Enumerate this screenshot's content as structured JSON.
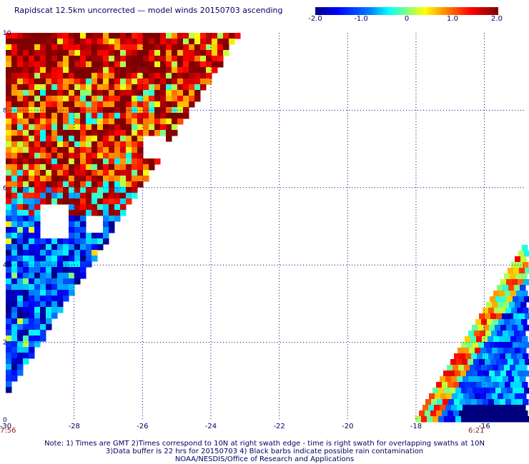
{
  "title": "Rapidscat 12.5km uncorrected — model winds 20150703 ascending",
  "colorbar": {
    "ticks": [
      "-2.0",
      "-1.0",
      "0",
      "1.0",
      "2.0"
    ],
    "tick_values": [
      -2.0,
      -1.0,
      0,
      1.0,
      2.0
    ],
    "range": [
      -2.0,
      2.0
    ]
  },
  "map": {
    "lon_range": [
      -30,
      -14.8
    ],
    "lat_range": [
      0,
      10
    ],
    "x_ticks": [
      "-30",
      "-28",
      "-26",
      "-24",
      "-22",
      "-20",
      "-18",
      "-16"
    ],
    "x_tick_values": [
      -30,
      -28,
      -26,
      -24,
      -22,
      -20,
      -18,
      -16
    ],
    "y_ticks": [
      "0",
      "2",
      "4",
      "6",
      "8",
      "10"
    ],
    "y_tick_values": [
      0,
      2,
      4,
      6,
      8,
      10
    ],
    "grid": "dotted",
    "left_swath_time": "7:56",
    "right_swath_time": "6:21"
  },
  "notes": {
    "line1": "Note: 1) Times are GMT 2)Times correspond to 10N at right swath edge - time is right swath for overlapping swaths at 10N",
    "line2": "3)Data buffer is 22 hrs for 20150703 4) Black barbs indicate possible rain contamination",
    "line3": "NOAA/NESDIS/Office of Research and Applications"
  },
  "colors": {
    "text": "#000060",
    "grid": "#000080",
    "time_label": "#8b1a1a"
  }
}
